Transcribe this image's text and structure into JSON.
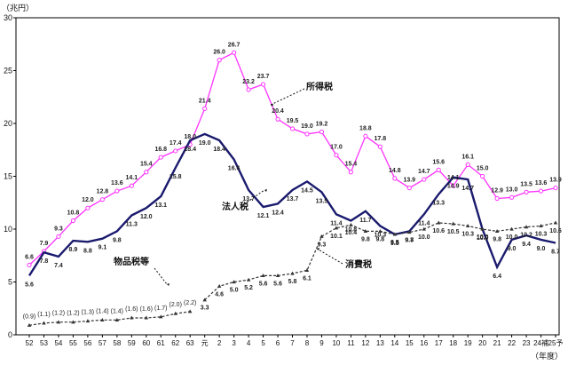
{
  "chart_data": {
    "type": "line",
    "unit_label": "（兆円）",
    "x_axis_label": "（年度）",
    "categories": [
      "52",
      "53",
      "54",
      "55",
      "56",
      "57",
      "58",
      "59",
      "60",
      "61",
      "62",
      "63",
      "元",
      "2",
      "3",
      "4",
      "5",
      "6",
      "7",
      "8",
      "9",
      "10",
      "11",
      "12",
      "13",
      "14",
      "15",
      "16",
      "17",
      "18",
      "19",
      "20",
      "21",
      "22",
      "23",
      "24補",
      "25予"
    ],
    "ylim": [
      0,
      30
    ],
    "yticks": [
      0,
      5,
      10,
      15,
      20,
      25,
      30
    ],
    "grid": false,
    "series": [
      {
        "name": "所得税",
        "color": "#ff33ff",
        "marker": "circle",
        "dashed": false,
        "values": [
          6.6,
          7.9,
          9.3,
          10.8,
          12.0,
          12.8,
          13.6,
          14.1,
          15.4,
          16.8,
          17.4,
          18.0,
          21.4,
          26.0,
          26.7,
          23.2,
          23.7,
          20.4,
          19.5,
          19.0,
          19.2,
          17.0,
          15.4,
          18.8,
          17.8,
          14.8,
          13.9,
          14.7,
          15.6,
          14.1,
          16.1,
          15.0,
          12.9,
          13.0,
          13.5,
          13.6,
          13.9
        ],
        "labels": [
          "6.6",
          "7.9",
          "9.3",
          "10.8",
          "12.0",
          "12.8",
          "13.6",
          "14.1",
          "15.4",
          "16.8",
          "17.4",
          "18.0",
          "21.4",
          "26.0",
          "26.7",
          "23.2",
          "23.7",
          "20.4",
          "19.5",
          "19.0",
          "19.2",
          "17.0",
          "15.4",
          "18.8",
          "17.8",
          "14.8",
          "13.9",
          "14.7",
          "15.6",
          "14.1",
          "16.1",
          "15.0",
          "12.9",
          "13.0",
          "13.5",
          "13.6",
          "13.9"
        ]
      },
      {
        "name": "法人税",
        "color": "#1a1a6e",
        "marker": "none",
        "dashed": false,
        "values": [
          5.6,
          7.8,
          7.4,
          8.9,
          8.8,
          9.1,
          9.8,
          11.3,
          12.0,
          13.1,
          15.8,
          18.4,
          19.0,
          18.4,
          16.6,
          13.7,
          12.1,
          12.4,
          13.7,
          14.5,
          13.5,
          11.4,
          10.8,
          11.7,
          10.3,
          9.5,
          9.8,
          11.4,
          13.3,
          14.9,
          14.7,
          10.0,
          6.4,
          9.0,
          9.4,
          9.0,
          8.7
        ],
        "labels": [
          "5.6",
          "7.8",
          "7.4",
          "8.9",
          "8.8",
          "9.1",
          "9.8",
          "11.3",
          "12.0",
          "13.1",
          "15.8",
          "18.4",
          "19.0",
          "18.4",
          "16.6",
          "13.7",
          "12.1",
          "12.4",
          "13.7",
          "14.5",
          "13.5",
          "11.4",
          "10.8",
          "11.7",
          "10.3",
          "9.5",
          "9.8",
          "11.4",
          "13.3",
          "14.9",
          "14.7",
          "10.0",
          "6.4",
          "9.0",
          "9.4",
          "9.0",
          "8.7"
        ]
      },
      {
        "name": "物品税等",
        "color": "#333333",
        "marker": "triangle",
        "dashed": true,
        "values": [
          0.9,
          1.1,
          1.2,
          1.2,
          1.3,
          1.4,
          1.4,
          1.6,
          1.6,
          1.7,
          2.0,
          2.2,
          null,
          null,
          null,
          null,
          null,
          null,
          null,
          null,
          null,
          null,
          null,
          null,
          null,
          null,
          null,
          null,
          null,
          null,
          null,
          null,
          null,
          null,
          null,
          null,
          null
        ],
        "labels": [
          "(0.9)",
          "(1.1)",
          "(1.2)",
          "(1.2)",
          "(1.3)",
          "(1.4)",
          "(1.4)",
          "(1.6)",
          "(1.6)",
          "(1.7)",
          "(2.0)",
          "(2.2)",
          "",
          "",
          "",
          "",
          "",
          "",
          "",
          "",
          "",
          "",
          "",
          "",
          "",
          "",
          "",
          "",
          "",
          "",
          "",
          "",
          "",
          "",
          "",
          "",
          ""
        ]
      },
      {
        "name": "消費税",
        "color": "#333333",
        "marker": "triangle",
        "dashed": true,
        "values": [
          null,
          null,
          null,
          null,
          null,
          null,
          null,
          null,
          null,
          null,
          null,
          null,
          3.3,
          4.6,
          5.0,
          5.2,
          5.6,
          5.6,
          5.8,
          6.1,
          9.3,
          10.1,
          10.4,
          9.8,
          9.8,
          9.5,
          9.7,
          10.0,
          10.6,
          10.5,
          10.3,
          10.0,
          9.8,
          10.0,
          10.2,
          10.3,
          10.6
        ],
        "labels": [
          "",
          "",
          "",
          "",
          "",
          "",
          "",
          "",
          "",
          "",
          "",
          "",
          "3.3",
          "4.6",
          "5.0",
          "5.2",
          "5.6",
          "5.6",
          "5.8",
          "6.1",
          "9.3",
          "10.1",
          "10.4",
          "9.8",
          "9.8",
          "9.5",
          "9.7",
          "10.0",
          "10.6",
          "10.5",
          "10.3",
          "10.0",
          "9.8",
          "10.0",
          "10.2",
          "10.3",
          "10.6"
        ]
      }
    ],
    "annotations": [
      {
        "text": "所得税",
        "series": 0
      },
      {
        "text": "法人税",
        "series": 1
      },
      {
        "text": "物品税等",
        "series": 2
      },
      {
        "text": "消費税",
        "series": 3
      }
    ]
  }
}
